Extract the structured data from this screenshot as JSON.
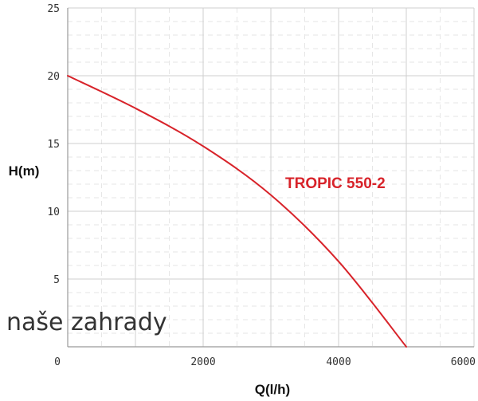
{
  "chart_data": {
    "type": "line",
    "title": "",
    "xlabel": "Q(l/h)",
    "ylabel": "H(m)",
    "xlim": [
      0,
      6000
    ],
    "ylim": [
      0,
      25
    ],
    "x_ticks": [
      "0",
      "2000",
      "4000",
      "6000"
    ],
    "y_ticks": [
      "5",
      "10",
      "15",
      "20",
      "25"
    ],
    "grid": true,
    "series": [
      {
        "name": "TROPIC 550-2",
        "color": "#d8232a",
        "x": [
          0,
          1000,
          2000,
          3000,
          4000,
          5000
        ],
        "y": [
          20,
          17.6,
          14.8,
          11.2,
          6.3,
          0
        ]
      }
    ]
  },
  "watermark": {
    "text": "naše zahrady"
  }
}
